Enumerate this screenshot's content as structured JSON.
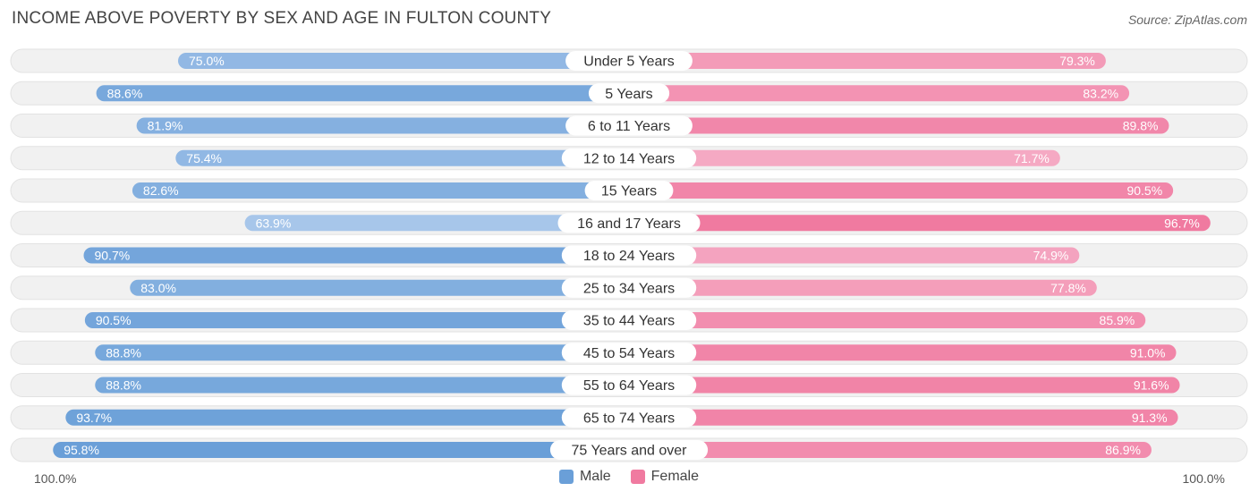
{
  "title": "INCOME ABOVE POVERTY BY SEX AND AGE IN FULTON COUNTY",
  "source": "Source: ZipAtlas.com",
  "axis": {
    "left_label": "100.0%",
    "right_label": "100.0%"
  },
  "colors": {
    "male_strong": "#6a9fd8",
    "male_light": "#a7c6ea",
    "female_strong": "#f07aa0",
    "female_light": "#f5a9c3",
    "row_bg": "#f0f0f0"
  },
  "legend": [
    {
      "label": "Male",
      "color": "#6a9fd8"
    },
    {
      "label": "Female",
      "color": "#f07aa0"
    }
  ],
  "chart_data": {
    "type": "bar",
    "orientation": "diverging-horizontal",
    "title": "INCOME ABOVE POVERTY BY SEX AND AGE IN FULTON COUNTY",
    "categories": [
      "Under 5 Years",
      "5 Years",
      "6 to 11 Years",
      "12 to 14 Years",
      "15 Years",
      "16 and 17 Years",
      "18 to 24 Years",
      "25 to 34 Years",
      "35 to 44 Years",
      "45 to 54 Years",
      "55 to 64 Years",
      "65 to 74 Years",
      "75 Years and over"
    ],
    "series": [
      {
        "name": "Male",
        "values": [
          75.0,
          88.6,
          81.9,
          75.4,
          82.6,
          63.9,
          90.7,
          83.0,
          90.5,
          88.8,
          88.8,
          93.7,
          95.8
        ]
      },
      {
        "name": "Female",
        "values": [
          79.3,
          83.2,
          89.8,
          71.7,
          90.5,
          96.7,
          74.9,
          77.8,
          85.9,
          91.0,
          91.6,
          91.3,
          86.9
        ]
      }
    ],
    "xlim": [
      0,
      100
    ],
    "legend_position": "bottom-center"
  }
}
